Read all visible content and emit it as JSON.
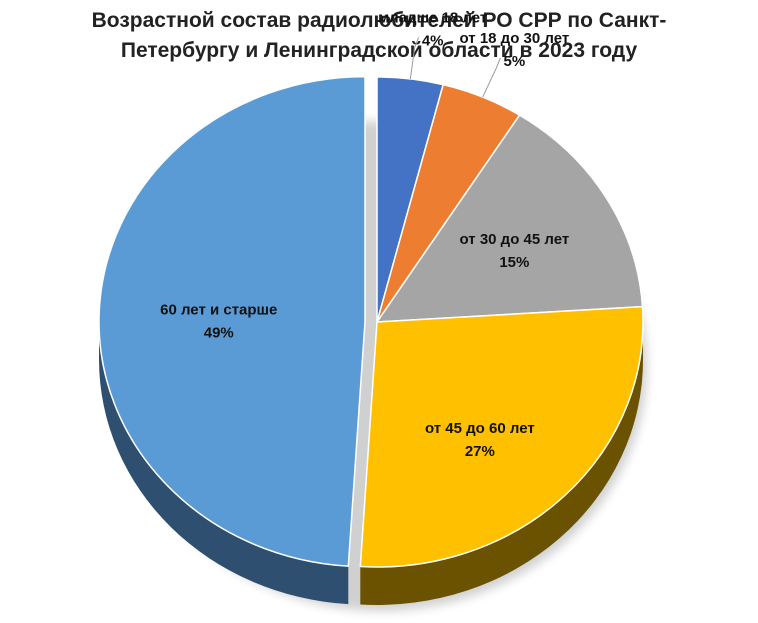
{
  "chart_data": {
    "type": "pie",
    "title_lines": [
      "Возрастной состав радиолюбителей РО СРР по Санкт-",
      "Петербургу и Ленинградской области в 2023 году"
    ],
    "slices": [
      {
        "label": "младше 18 лет",
        "value_label": "4%",
        "value": 4,
        "color": "#4472C4",
        "side_color": "#2B4A85"
      },
      {
        "label": "от 18 до 30 лет",
        "value_label": "5%",
        "value": 5,
        "color": "#ED7D31",
        "side_color": "#9A4F1C"
      },
      {
        "label": "от 30 до 45 лет",
        "value_label": "15%",
        "value": 15,
        "color": "#A5A5A5",
        "side_color": "#6B6B6B"
      },
      {
        "label": "от 45 до 60 лет",
        "value_label": "27%",
        "value": 27,
        "color": "#FFC000",
        "side_color": "#6B5200"
      },
      {
        "label": "60 лет и старше",
        "value_label": "49%",
        "value": 49,
        "color": "#5B9BD5",
        "side_color": "#2E4F70"
      }
    ],
    "exploded": "60 лет и старше",
    "legend": "none"
  }
}
